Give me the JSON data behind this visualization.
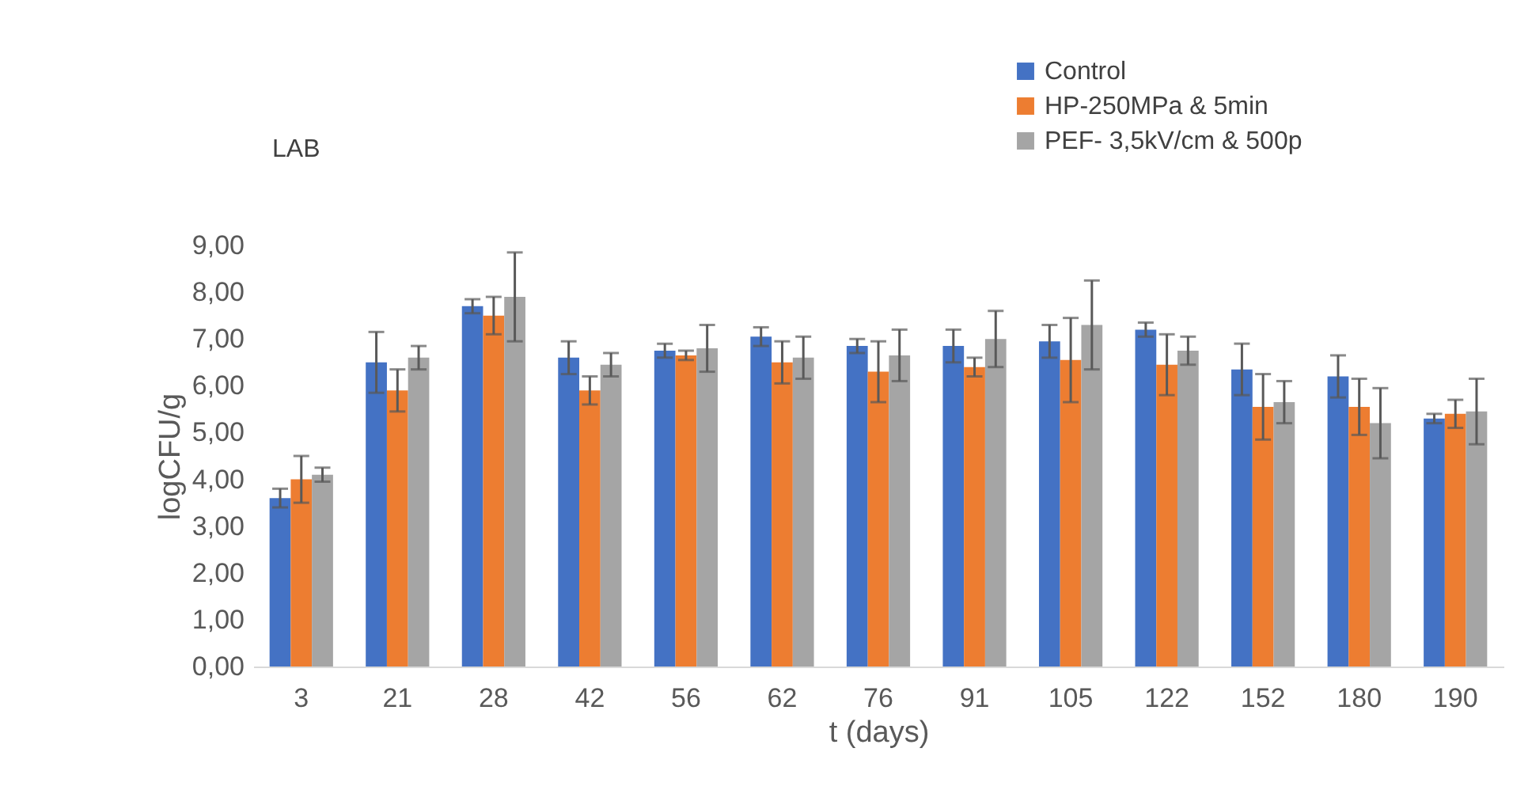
{
  "chart_data": {
    "type": "bar",
    "xlabel": "t (days)",
    "ylabel": "logCFU/g",
    "annotations": [
      "LAB"
    ],
    "categories": [
      "3",
      "21",
      "28",
      "42",
      "56",
      "62",
      "76",
      "91",
      "105",
      "122",
      "152",
      "180",
      "190"
    ],
    "series": [
      {
        "name": "Control",
        "color": "#4472c4",
        "values": [
          3.6,
          6.5,
          7.7,
          6.6,
          6.75,
          7.05,
          6.85,
          6.85,
          6.95,
          7.2,
          6.35,
          6.2,
          5.3
        ],
        "errors": [
          0.2,
          0.65,
          0.15,
          0.35,
          0.15,
          0.2,
          0.15,
          0.35,
          0.35,
          0.15,
          0.55,
          0.45,
          0.1
        ]
      },
      {
        "name": "HP-250MPa & 5min",
        "color": "#ed7d31",
        "values": [
          4.0,
          5.9,
          7.5,
          5.9,
          6.65,
          6.5,
          6.3,
          6.4,
          6.55,
          6.45,
          5.55,
          5.55,
          5.4
        ],
        "errors": [
          0.5,
          0.45,
          0.4,
          0.3,
          0.1,
          0.45,
          0.65,
          0.2,
          0.9,
          0.65,
          0.7,
          0.6,
          0.3
        ]
      },
      {
        "name": "PEF- 3,5kV/cm & 500p",
        "color": "#a5a5a5",
        "values": [
          4.1,
          6.6,
          7.9,
          6.45,
          6.8,
          6.6,
          6.65,
          7.0,
          7.3,
          6.75,
          5.65,
          5.2,
          5.45
        ],
        "errors": [
          0.15,
          0.25,
          0.95,
          0.25,
          0.5,
          0.45,
          0.55,
          0.6,
          0.95,
          0.3,
          0.45,
          0.75,
          0.7
        ]
      }
    ],
    "ylim": [
      0,
      9
    ],
    "yticks": [
      {
        "value": 0,
        "label": "0,00"
      },
      {
        "value": 1,
        "label": "1,00"
      },
      {
        "value": 2,
        "label": "2,00"
      },
      {
        "value": 3,
        "label": "3,00"
      },
      {
        "value": 4,
        "label": "4,00"
      },
      {
        "value": 5,
        "label": "5,00"
      },
      {
        "value": 6,
        "label": "6,00"
      },
      {
        "value": 7,
        "label": "7,00"
      },
      {
        "value": 8,
        "label": "8,00"
      },
      {
        "value": 9,
        "label": "9,00"
      }
    ],
    "legend": "top right"
  }
}
